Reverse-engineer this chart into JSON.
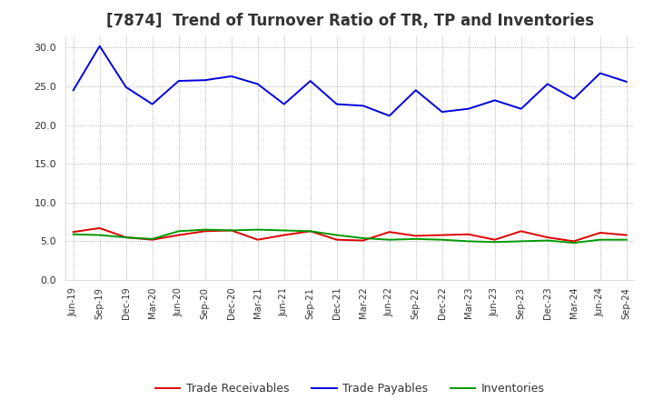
{
  "title": "[7874]  Trend of Turnover Ratio of TR, TP and Inventories",
  "x_labels": [
    "Jun-19",
    "Sep-19",
    "Dec-19",
    "Mar-20",
    "Jun-20",
    "Sep-20",
    "Dec-20",
    "Mar-21",
    "Jun-21",
    "Sep-21",
    "Dec-21",
    "Mar-22",
    "Jun-22",
    "Sep-22",
    "Dec-22",
    "Mar-23",
    "Jun-23",
    "Sep-23",
    "Dec-23",
    "Mar-24",
    "Jun-24",
    "Sep-24"
  ],
  "trade_receivables": [
    6.2,
    6.7,
    5.5,
    5.2,
    5.8,
    6.3,
    6.4,
    5.2,
    5.8,
    6.3,
    5.2,
    5.1,
    6.2,
    5.7,
    5.8,
    5.9,
    5.2,
    6.3,
    5.5,
    5.0,
    6.1,
    5.8
  ],
  "trade_payables": [
    24.5,
    30.2,
    24.9,
    22.7,
    25.7,
    25.8,
    26.3,
    25.3,
    22.7,
    25.7,
    22.7,
    22.5,
    21.2,
    24.5,
    21.7,
    22.1,
    23.2,
    22.1,
    25.3,
    23.4,
    26.7,
    25.6
  ],
  "inventories": [
    5.9,
    5.8,
    5.5,
    5.3,
    6.3,
    6.5,
    6.4,
    6.5,
    6.4,
    6.3,
    5.8,
    5.4,
    5.2,
    5.3,
    5.2,
    5.0,
    4.9,
    5.0,
    5.1,
    4.8,
    5.2,
    5.2
  ],
  "tr_color": "#dd0000",
  "tp_color": "#0000dd",
  "inv_color": "#009900",
  "ylim": [
    0.0,
    31.5
  ],
  "yticks": [
    0.0,
    5.0,
    10.0,
    15.0,
    20.0,
    25.0,
    30.0
  ],
  "background_color": "#ffffff",
  "grid_color": "#999999",
  "title_fontsize": 12,
  "title_color": "#333333",
  "tick_color": "#333333",
  "legend_labels": [
    "Trade Receivables",
    "Trade Payables",
    "Inventories"
  ]
}
